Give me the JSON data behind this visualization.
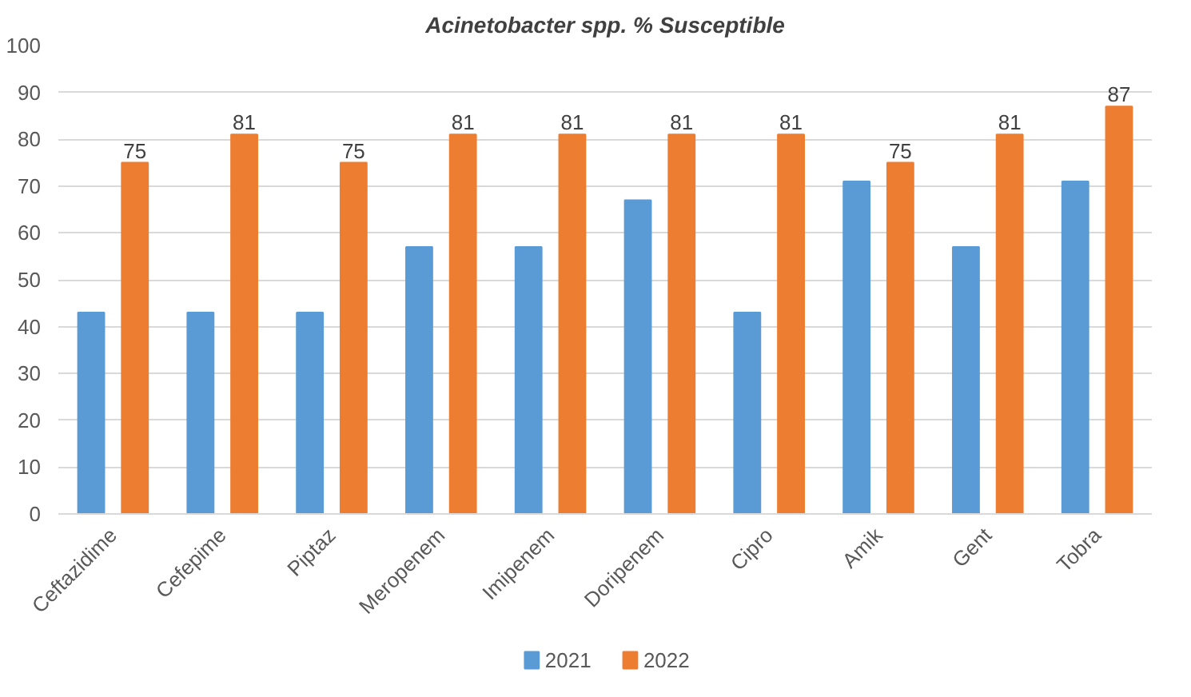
{
  "chart_data": {
    "type": "bar",
    "title": "Acinetobacter spp. % Susceptible",
    "categories": [
      "Ceftazidime",
      "Cefepime",
      "Piptaz",
      "Meropenem",
      "Imipenem",
      "Doripenem",
      "Cipro",
      "Amik",
      "Gent",
      "Tobra"
    ],
    "series": [
      {
        "name": "2021",
        "color": "#5b9bd5",
        "values": [
          43,
          43,
          43,
          57,
          57,
          67,
          43,
          71,
          57,
          71
        ]
      },
      {
        "name": "2022",
        "color": "#ed7d31",
        "values": [
          75,
          81,
          75,
          81,
          81,
          81,
          81,
          75,
          81,
          87
        ],
        "value_labels": [
          "75",
          "81",
          "75",
          "81",
          "81",
          "81",
          "81",
          "75",
          "81",
          "87"
        ]
      }
    ],
    "ylim": [
      0,
      100
    ],
    "yticks": [
      0,
      10,
      20,
      30,
      40,
      50,
      60,
      70,
      80,
      90,
      100
    ],
    "grid": "y",
    "legend": "bottom"
  }
}
